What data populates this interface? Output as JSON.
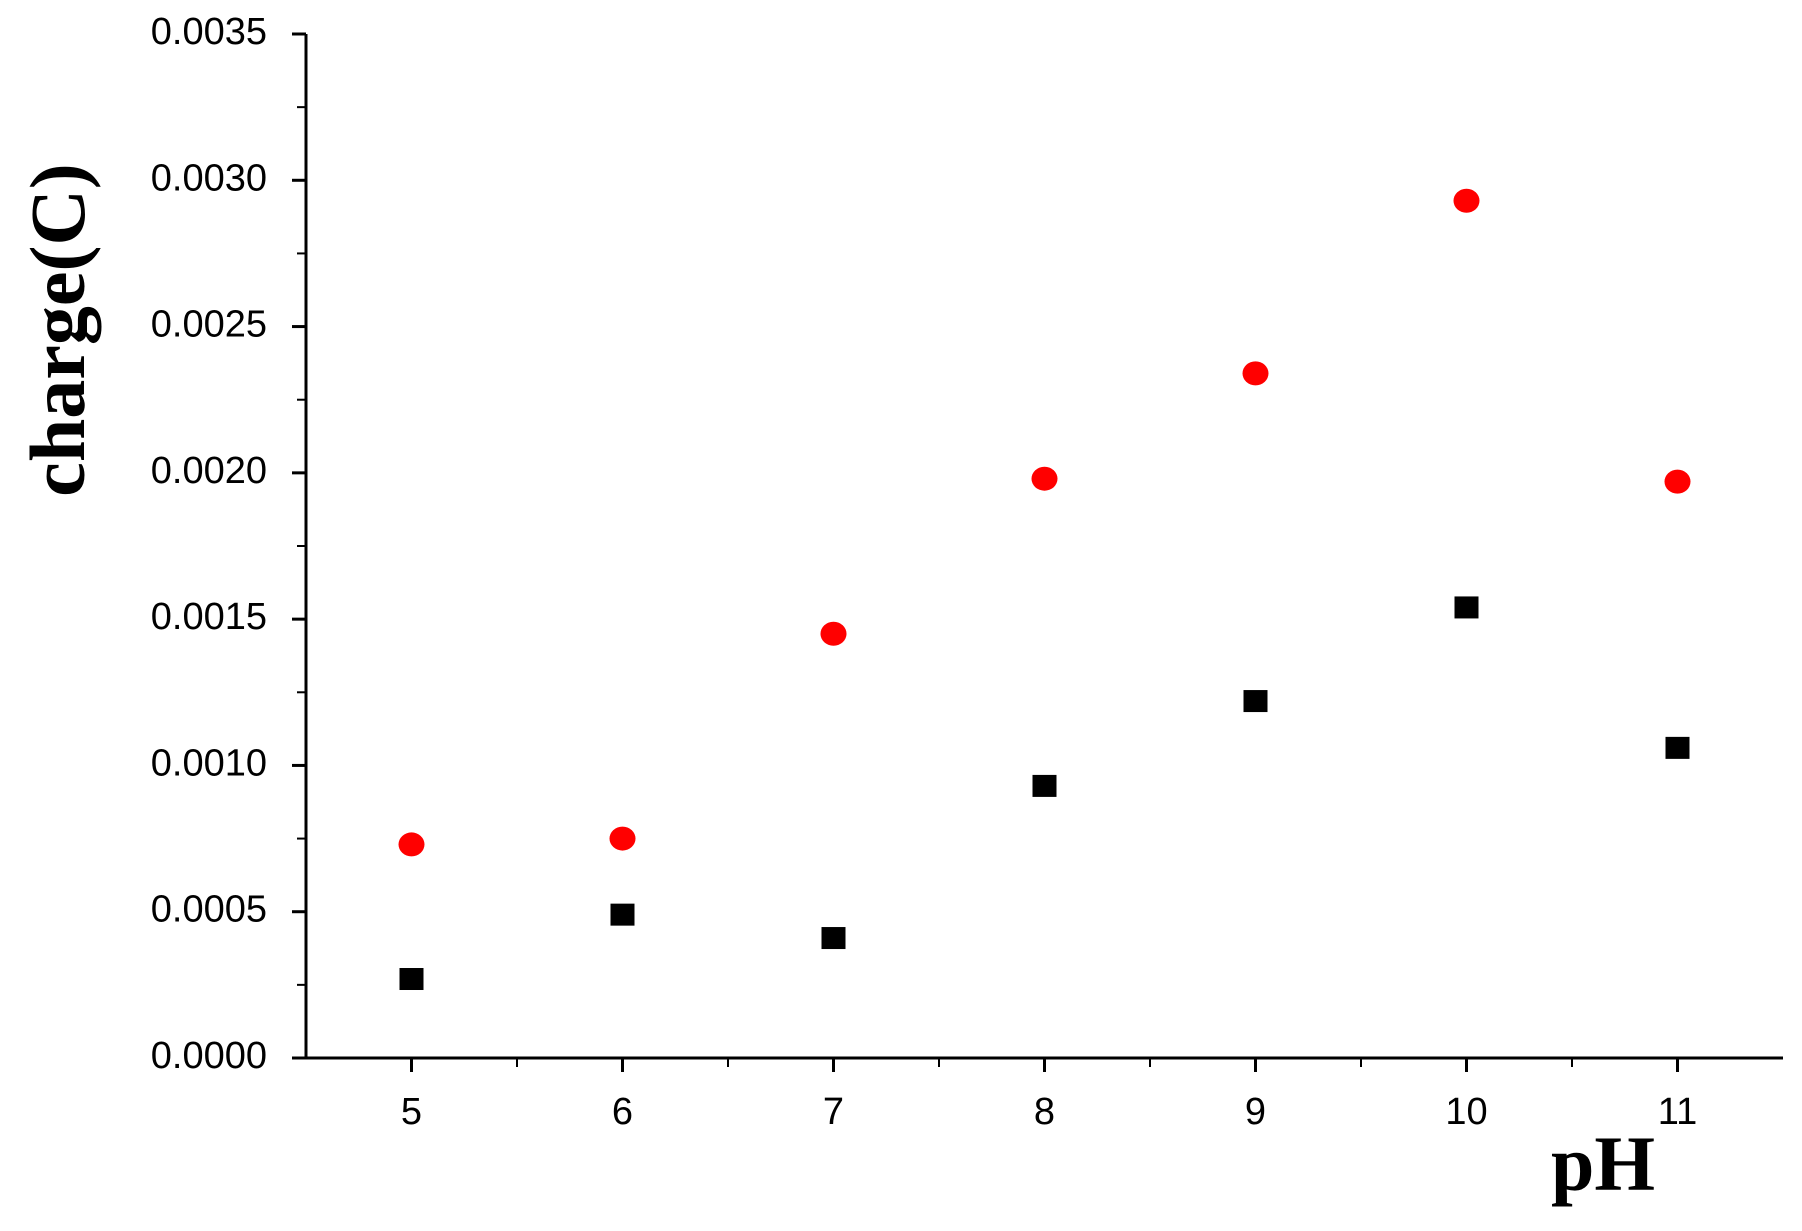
{
  "chart_data": {
    "type": "scatter",
    "x_label": "pH",
    "y_label": "charge(C)",
    "xlim": [
      4.5,
      11.5
    ],
    "xticks": [
      5,
      6,
      7,
      8,
      9,
      10,
      11
    ],
    "ylim": [
      0,
      0.0035
    ],
    "yticks": [
      {
        "value": 0,
        "label": "0.0000"
      },
      {
        "value": 0.0005,
        "label": "0.0005"
      },
      {
        "value": 0.001,
        "label": "0.0010"
      },
      {
        "value": 0.0015,
        "label": "0.0015"
      },
      {
        "value": 0.002,
        "label": "0.0020"
      },
      {
        "value": 0.0025,
        "label": "0.0025"
      },
      {
        "value": 0.003,
        "label": "0.0030"
      },
      {
        "value": 0.0035,
        "label": "0.0035"
      }
    ],
    "x": [
      5,
      6,
      7,
      8,
      9,
      10,
      11
    ],
    "series": [
      {
        "color": "#000000",
        "marker": "square",
        "values": [
          0.00027,
          0.00049,
          0.00041,
          0.00093,
          0.00122,
          0.00154,
          0.00106
        ]
      },
      {
        "color": "#ff0000",
        "marker": "circle",
        "values": [
          0.00073,
          0.00075,
          0.00145,
          0.00198,
          0.00234,
          0.00293,
          0.00197
        ]
      }
    ]
  }
}
